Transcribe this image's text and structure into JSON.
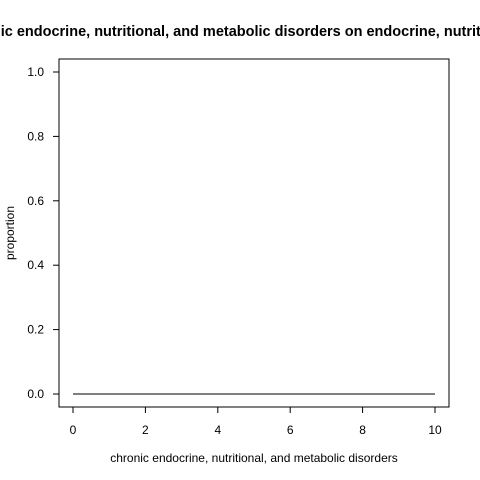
{
  "chart_data": {
    "type": "line",
    "title": "Cumulative incidence of chronic endocrine, nutritional, and metabolic disorders on endocrine, nutritional, and metabolic disorders",
    "xlabel": "chronic endocrine, nutritional, and metabolic disorders",
    "ylabel": "proportion",
    "xlim": [
      0,
      10
    ],
    "ylim": [
      0,
      1
    ],
    "x_ticks": [
      0,
      2,
      4,
      6,
      8,
      10
    ],
    "y_ticks": [
      0.0,
      0.2,
      0.4,
      0.6,
      0.8,
      1.0
    ],
    "x_tick_labels": [
      "0",
      "2",
      "4",
      "6",
      "8",
      "10"
    ],
    "y_tick_labels": [
      "0.0",
      "0.2",
      "0.4",
      "0.6",
      "0.8",
      "1.0"
    ],
    "grid": false,
    "legend": "none",
    "series": [
      {
        "x": [
          0,
          10
        ],
        "y": [
          0,
          0
        ],
        "color": "#000000"
      }
    ]
  }
}
